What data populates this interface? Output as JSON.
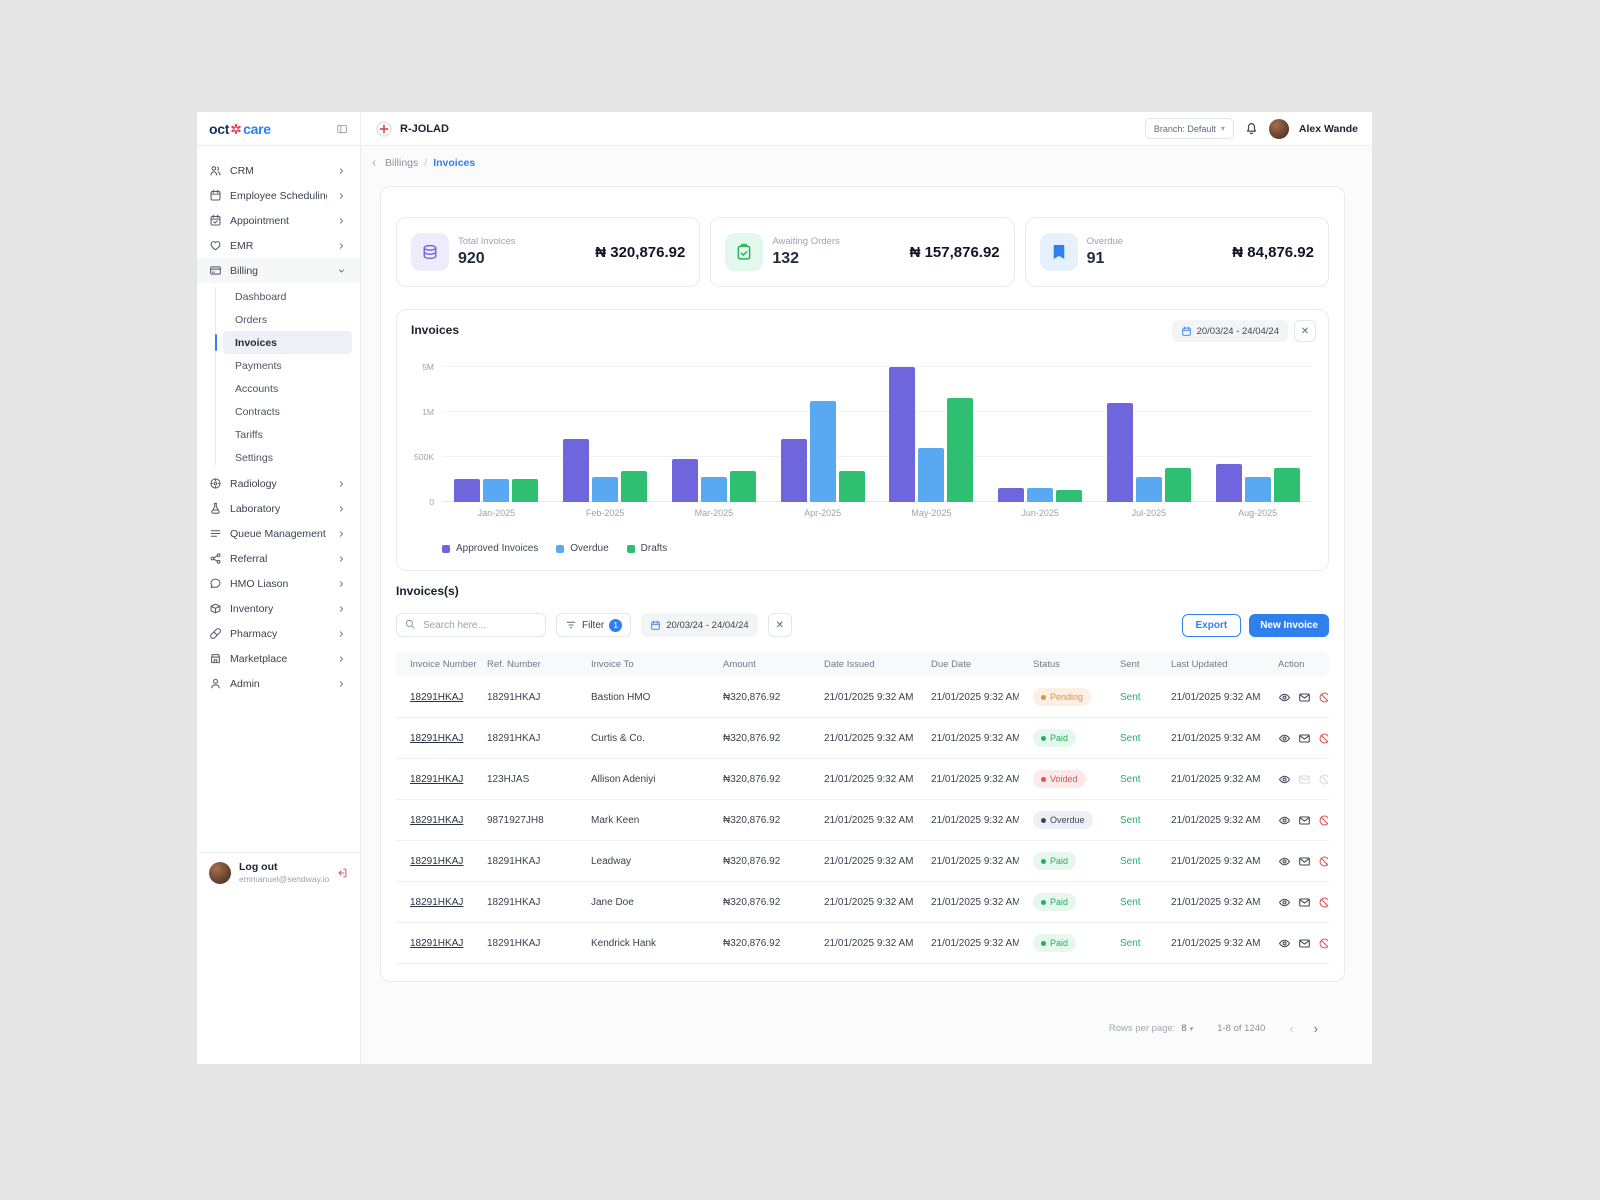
{
  "brand": {
    "name_left": "oct",
    "name_right": "care"
  },
  "topbar": {
    "org": "R-JOLAD",
    "branch": "Branch: Default",
    "user": "Alex Wande"
  },
  "breadcrumb": {
    "parent": "Billings",
    "separator": "/",
    "current": "Invoices"
  },
  "sidebar": {
    "items": [
      {
        "label": "CRM",
        "icon": "crm-icon"
      },
      {
        "label": "Employee Scheduling",
        "icon": "employee-scheduling-icon"
      },
      {
        "label": "Appointment",
        "icon": "appointment-icon"
      },
      {
        "label": "EMR",
        "icon": "emr-icon"
      },
      {
        "label": "Billing",
        "icon": "billing-icon",
        "expanded": true,
        "children": [
          {
            "label": "Dashboard"
          },
          {
            "label": "Orders"
          },
          {
            "label": "Invoices",
            "active": true
          },
          {
            "label": "Payments"
          },
          {
            "label": "Accounts"
          },
          {
            "label": "Contracts"
          },
          {
            "label": "Tariffs"
          },
          {
            "label": "Settings"
          }
        ]
      },
      {
        "label": "Radiology",
        "icon": "radiology-icon"
      },
      {
        "label": "Laboratory",
        "icon": "laboratory-icon"
      },
      {
        "label": "Queue Management",
        "icon": "queue-management-icon"
      },
      {
        "label": "Referral",
        "icon": "referral-icon"
      },
      {
        "label": "HMO Liason",
        "icon": "hmo-liason-icon"
      },
      {
        "label": "Inventory",
        "icon": "inventory-icon"
      },
      {
        "label": "Pharmacy",
        "icon": "pharmacy-icon"
      },
      {
        "label": "Marketplace",
        "icon": "marketplace-icon"
      },
      {
        "label": "Admin",
        "icon": "admin-icon"
      }
    ],
    "logout": {
      "label": "Log out",
      "email": "emmanuel@sendway.io"
    }
  },
  "stats": [
    {
      "label": "Total Invoices",
      "count": "920",
      "amount": "₦ 320,876.92",
      "icon": "coins-icon",
      "tile_bg": "#EEEBFB",
      "accent": "#6F66DD"
    },
    {
      "label": "Awaiting Orders",
      "count": "132",
      "amount": "₦ 157,876.92",
      "icon": "orders-check-icon",
      "tile_bg": "#E4F7EC",
      "accent": "#27AE60"
    },
    {
      "label": "Overdue",
      "count": "91",
      "amount": "₦ 84,876.92",
      "icon": "bookmark-icon",
      "tile_bg": "#E7F1FD",
      "accent": "#2F80ED"
    }
  ],
  "chart_data": {
    "type": "bar",
    "title": "Invoices",
    "date_filter": "20/03/24 - 24/04/24",
    "categories": [
      "Jan-2025",
      "Feb-2025",
      "Mar-2025",
      "Apr-2025",
      "May-2025",
      "Jun-2025",
      "Jul-2025",
      "Aug-2025"
    ],
    "series": [
      {
        "name": "Approved Invoices",
        "color": "#6F66DD",
        "values": [
          260000,
          700000,
          480000,
          700000,
          5000000,
          150000,
          1800000,
          420000
        ]
      },
      {
        "name": "Overdue",
        "color": "#59A9F2",
        "values": [
          260000,
          280000,
          280000,
          2000000,
          600000,
          150000,
          280000,
          280000
        ]
      },
      {
        "name": "Drafts",
        "color": "#2FBF71",
        "values": [
          260000,
          350000,
          350000,
          350000,
          2200000,
          130000,
          380000,
          380000
        ]
      }
    ],
    "y_ticks": [
      {
        "label": "0",
        "value": 0
      },
      {
        "label": "500K",
        "value": 500000
      },
      {
        "label": "1M",
        "value": 1000000
      },
      {
        "label": "5M",
        "value": 5000000
      }
    ],
    "grid": true,
    "legend_position": "bottom-left"
  },
  "invoices": {
    "title": "Invoices(s)",
    "search_placeholder": "Search here...",
    "filter_label": "Filter",
    "filter_count": "1",
    "date_filter": "20/03/24 - 24/04/24",
    "export_label": "Export",
    "new_invoice_label": "New Invoice",
    "columns": [
      "Invoice Number",
      "Ref. Number",
      "Invoice To",
      "Amount",
      "Date Issued",
      "Due Date",
      "Status",
      "Sent",
      "Last Updated",
      "Action"
    ],
    "status_styles": {
      "Pending": {
        "bg": "#FCEFE3",
        "fg": "#E8913A"
      },
      "Paid": {
        "bg": "#E6F7EE",
        "fg": "#27AE60"
      },
      "Voided": {
        "bg": "#FCE9E9",
        "fg": "#E05252"
      },
      "Overdue": {
        "bg": "#EDF0F4",
        "fg": "#3D4654"
      }
    },
    "rows": [
      {
        "invoice_number": "18291HKAJ",
        "ref": "18291HKAJ",
        "to": "Bastion HMO",
        "amount": "₦320,876.92",
        "issued": "21/01/2025 9:32 AM",
        "due": "21/01/2025 9:32 AM",
        "status": "Pending",
        "sent": "Sent",
        "updated": "21/01/2025 9:32 AM",
        "actions_disabled": false
      },
      {
        "invoice_number": "18291HKAJ",
        "ref": "18291HKAJ",
        "to": "Curtis & Co.",
        "amount": "₦320,876.92",
        "issued": "21/01/2025 9:32 AM",
        "due": "21/01/2025 9:32 AM",
        "status": "Paid",
        "sent": "Sent",
        "updated": "21/01/2025 9:32 AM",
        "actions_disabled": false
      },
      {
        "invoice_number": "18291HKAJ",
        "ref": "123HJAS",
        "to": "Allison Adeniyi",
        "amount": "₦320,876.92",
        "issued": "21/01/2025 9:32 AM",
        "due": "21/01/2025 9:32 AM",
        "status": "Voided",
        "sent": "Sent",
        "updated": "21/01/2025 9:32 AM",
        "actions_disabled": true
      },
      {
        "invoice_number": "18291HKAJ",
        "ref": "9871927JH8",
        "to": "Mark Keen",
        "amount": "₦320,876.92",
        "issued": "21/01/2025 9:32 AM",
        "due": "21/01/2025 9:32 AM",
        "status": "Overdue",
        "sent": "Sent",
        "updated": "21/01/2025 9:32 AM",
        "actions_disabled": false
      },
      {
        "invoice_number": "18291HKAJ",
        "ref": "18291HKAJ",
        "to": "Leadway",
        "amount": "₦320,876.92",
        "issued": "21/01/2025 9:32 AM",
        "due": "21/01/2025 9:32 AM",
        "status": "Paid",
        "sent": "Sent",
        "updated": "21/01/2025 9:32 AM",
        "actions_disabled": false
      },
      {
        "invoice_number": "18291HKAJ",
        "ref": "18291HKAJ",
        "to": "Jane Doe",
        "amount": "₦320,876.92",
        "issued": "21/01/2025 9:32 AM",
        "due": "21/01/2025 9:32 AM",
        "status": "Paid",
        "sent": "Sent",
        "updated": "21/01/2025 9:32 AM",
        "actions_disabled": false
      },
      {
        "invoice_number": "18291HKAJ",
        "ref": "18291HKAJ",
        "to": "Kendrick Hank",
        "amount": "₦320,876.92",
        "issued": "21/01/2025 9:32 AM",
        "due": "21/01/2025 9:32 AM",
        "status": "Paid",
        "sent": "Sent",
        "updated": "21/01/2025 9:32 AM",
        "actions_disabled": false
      }
    ]
  },
  "pagination": {
    "rows_per_page_label": "Rows per page:",
    "rows_per_page": "8",
    "range": "1-8 of 1240"
  }
}
